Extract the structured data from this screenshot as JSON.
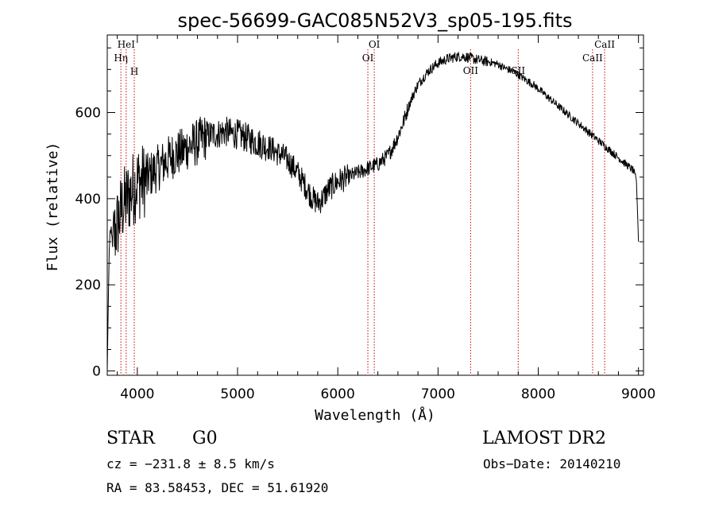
{
  "chart_data": {
    "type": "line",
    "title": "spec-56699-GAC085N52V3_sp05-195.fits",
    "xlabel": "Wavelength (Å)",
    "ylabel": "Flux (relative)",
    "xlim": [
      3700,
      9050
    ],
    "ylim": [
      -10,
      780
    ],
    "xticks": [
      4000,
      5000,
      6000,
      7000,
      8000,
      9000
    ],
    "xtick_labels": [
      "4000",
      "5000",
      "6000",
      "7000",
      "8000",
      "9000"
    ],
    "yticks": [
      0,
      200,
      400,
      600
    ],
    "ytick_labels": [
      "0",
      "200",
      "400",
      "600"
    ],
    "grid": false,
    "series": [
      {
        "x": [
          3700,
          3710,
          3720,
          3730,
          3750,
          3800,
          3850,
          3900,
          3950,
          4000,
          4050,
          4100,
          4150,
          4200,
          4250,
          4300,
          4350,
          4400,
          4450,
          4500,
          4550,
          4600,
          4650,
          4700,
          4750,
          4800,
          4850,
          4900,
          4950,
          5000,
          5050,
          5100,
          5150,
          5200,
          5250,
          5300,
          5350,
          5400,
          5450,
          5500,
          5550,
          5600,
          5650,
          5700,
          5750,
          5800,
          5850,
          5900,
          5950,
          6000,
          6050,
          6100,
          6150,
          6200,
          6250,
          6300,
          6350,
          6400,
          6450,
          6500,
          6550,
          6600,
          6650,
          6700,
          6750,
          6800,
          6850,
          6900,
          6950,
          7000,
          7050,
          7100,
          7150,
          7200,
          7250,
          7300,
          7350,
          7400,
          7450,
          7500,
          7550,
          7600,
          7650,
          7700,
          7750,
          7800,
          7850,
          7900,
          7950,
          8000,
          8050,
          8100,
          8150,
          8200,
          8250,
          8300,
          8350,
          8400,
          8450,
          8500,
          8550,
          8600,
          8650,
          8700,
          8750,
          8800,
          8850,
          8900,
          8950,
          8980,
          9000
        ],
        "y": [
          0,
          150,
          280,
          330,
          300,
          340,
          380,
          400,
          420,
          440,
          440,
          450,
          460,
          470,
          480,
          490,
          500,
          505,
          510,
          520,
          525,
          530,
          540,
          545,
          550,
          550,
          555,
          555,
          550,
          550,
          545,
          540,
          535,
          530,
          525,
          520,
          515,
          505,
          500,
          490,
          475,
          460,
          440,
          420,
          400,
          390,
          400,
          420,
          430,
          440,
          445,
          450,
          455,
          460,
          465,
          470,
          475,
          480,
          490,
          500,
          520,
          545,
          575,
          610,
          640,
          665,
          680,
          695,
          705,
          715,
          720,
          725,
          728,
          730,
          730,
          728,
          725,
          722,
          720,
          718,
          715,
          712,
          705,
          700,
          695,
          688,
          680,
          672,
          665,
          655,
          645,
          635,
          625,
          615,
          605,
          595,
          585,
          575,
          565,
          555,
          545,
          535,
          525,
          515,
          505,
          495,
          485,
          475,
          465,
          440,
          300
        ]
      }
    ],
    "line_markers": [
      {
        "label": "Hη",
        "x": 3836,
        "row": "lower"
      },
      {
        "label": "HeI",
        "x": 3889,
        "row": "upper"
      },
      {
        "label": "H",
        "x": 3970,
        "row": "lowest"
      },
      {
        "label": "OI",
        "x": 6300,
        "row": "lower"
      },
      {
        "label": "OI",
        "x": 6364,
        "row": "upper"
      },
      {
        "label": "OII",
        "x": 7325,
        "row": "middle"
      },
      {
        "label": "SII",
        "x": 7800,
        "row": "middle"
      },
      {
        "label": "CaII",
        "x": 8542,
        "row": "lower"
      },
      {
        "label": "CaII",
        "x": 8662,
        "row": "upper"
      }
    ]
  },
  "info": {
    "object_type": "STAR",
    "subclass": "G0",
    "survey": "LAMOST DR2",
    "cz": "cz = −231.8 ± 8.5 km/s",
    "obs_date": "Obs−Date: 20140210",
    "coords": "RA =  83.58453, DEC =  51.61920"
  },
  "colors": {
    "spectrum": "#000000",
    "marker_line": "#cc0000",
    "axes": "#000000"
  }
}
